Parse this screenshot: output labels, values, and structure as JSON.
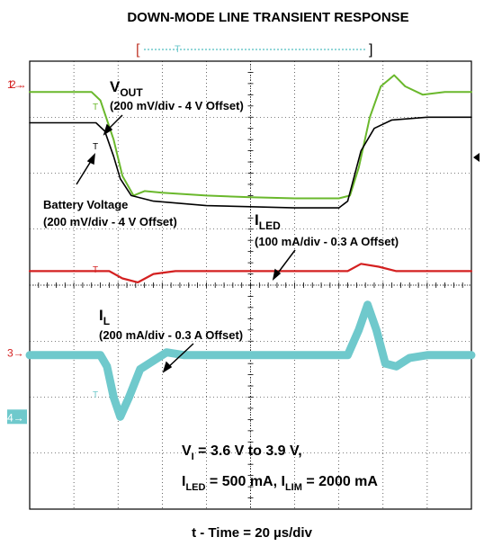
{
  "chart_data": {
    "type": "line",
    "title": "DOWN-MODE LINE TRANSIENT RESPONSE",
    "xlabel": "t - Time = 20 µs/div",
    "grid": true,
    "divisions": {
      "x": 10,
      "y": 8
    },
    "channel_markers": [
      {
        "label": "1",
        "color": "#d42020",
        "level_div": 7.6
      },
      {
        "label": "2",
        "color": "#d42020",
        "level_div": 7.6
      },
      {
        "label": "3",
        "color": "#d42020",
        "level_div": 2.8
      },
      {
        "label": "4",
        "color": "#6fc9cc",
        "level_div": 1.65
      }
    ],
    "series": [
      {
        "name": "VOUT",
        "color": "#6ab82c",
        "points": [
          [
            0,
            7.45
          ],
          [
            1.4,
            7.45
          ],
          [
            1.6,
            7.3
          ],
          [
            1.9,
            6.6
          ],
          [
            2.1,
            5.95
          ],
          [
            2.35,
            5.6
          ],
          [
            2.6,
            5.68
          ],
          [
            3.0,
            5.65
          ],
          [
            4,
            5.6
          ],
          [
            5,
            5.57
          ],
          [
            6,
            5.55
          ],
          [
            7.0,
            5.55
          ],
          [
            7.25,
            5.6
          ],
          [
            7.45,
            6.1
          ],
          [
            7.7,
            7.0
          ],
          [
            7.95,
            7.55
          ],
          [
            8.25,
            7.75
          ],
          [
            8.5,
            7.55
          ],
          [
            8.9,
            7.4
          ],
          [
            9.4,
            7.45
          ],
          [
            10,
            7.45
          ]
        ]
      },
      {
        "name": "Battery Voltage",
        "color": "#000000",
        "points": [
          [
            0,
            6.9
          ],
          [
            1.5,
            6.9
          ],
          [
            1.7,
            6.75
          ],
          [
            1.9,
            6.3
          ],
          [
            2.05,
            5.9
          ],
          [
            2.3,
            5.6
          ],
          [
            2.8,
            5.5
          ],
          [
            4,
            5.42
          ],
          [
            5,
            5.4
          ],
          [
            6,
            5.38
          ],
          [
            7.0,
            5.38
          ],
          [
            7.2,
            5.5
          ],
          [
            7.5,
            6.4
          ],
          [
            7.8,
            6.8
          ],
          [
            8.2,
            6.95
          ],
          [
            9,
            7.0
          ],
          [
            10,
            7.0
          ]
        ]
      },
      {
        "name": "ILED",
        "color": "#d42020",
        "points": [
          [
            0,
            4.25
          ],
          [
            1.8,
            4.25
          ],
          [
            2.1,
            4.12
          ],
          [
            2.45,
            4.05
          ],
          [
            2.8,
            4.2
          ],
          [
            3.3,
            4.25
          ],
          [
            7.2,
            4.25
          ],
          [
            7.5,
            4.38
          ],
          [
            7.9,
            4.33
          ],
          [
            8.3,
            4.25
          ],
          [
            10,
            4.25
          ]
        ]
      },
      {
        "name": "IL",
        "color": "#6fc9cc",
        "points": [
          [
            0,
            2.75
          ],
          [
            1.6,
            2.75
          ],
          [
            1.75,
            2.55
          ],
          [
            1.9,
            2.0
          ],
          [
            2.05,
            1.65
          ],
          [
            2.25,
            2.0
          ],
          [
            2.5,
            2.5
          ],
          [
            3.1,
            2.8
          ],
          [
            3.5,
            2.75
          ],
          [
            7.2,
            2.75
          ],
          [
            7.45,
            3.2
          ],
          [
            7.65,
            3.65
          ],
          [
            7.85,
            3.2
          ],
          [
            8.05,
            2.6
          ],
          [
            8.3,
            2.55
          ],
          [
            8.6,
            2.7
          ],
          [
            9,
            2.75
          ],
          [
            10,
            2.75
          ]
        ]
      }
    ],
    "annotations": {
      "vout": {
        "main": "V",
        "sub": "OUT",
        "scale": "(200 mV/div - 4 V Offset)"
      },
      "battery": {
        "line1": "Battery Voltage",
        "line2": "(200 mV/div - 4 V Offset)"
      },
      "iled": {
        "main": "I",
        "sub": "LED",
        "scale": "(100 mA/div - 0.3 A Offset)"
      },
      "il": {
        "main": "I",
        "sub": "L",
        "scale": "(200 mA/div - 0.3 A Offset)"
      },
      "cond1": {
        "main": "V",
        "sub": "I",
        "rest": " = 3.6 V to 3.9 V,"
      },
      "cond2": {
        "a": "I",
        "a_sub": "LED",
        "mid": " = 500 mA, I",
        "b_sub": "LIM",
        "rest": " = 2000 mA"
      }
    }
  }
}
